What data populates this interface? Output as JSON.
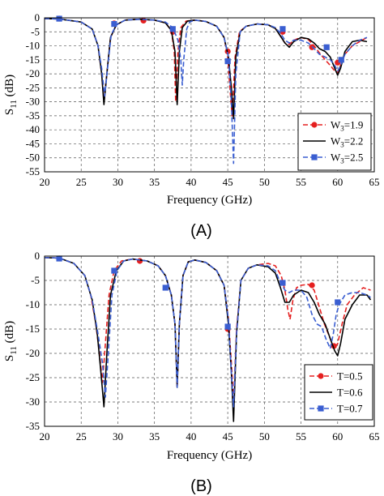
{
  "chart_data": [
    {
      "type": "line",
      "panel_label": "(A)",
      "xlabel": "Frequency (GHz)",
      "ylabel": "S11 (dB)",
      "xlim": [
        20,
        65
      ],
      "ylim": [
        -55,
        0
      ],
      "xticks": [
        20,
        25,
        30,
        35,
        40,
        45,
        50,
        55,
        60,
        65
      ],
      "yticks": [
        0,
        -5,
        -10,
        -15,
        -20,
        -25,
        -30,
        -35,
        -40,
        -45,
        -50,
        -55
      ],
      "grid": true,
      "grid_style": "dashed",
      "legend_position": "right",
      "series": [
        {
          "name": "W3=1.9",
          "legend_main": "W",
          "legend_sub": "3",
          "legend_suffix": "=1.9",
          "color": "#e52020",
          "dash": "dashed",
          "marker": "circle",
          "markers": [
            [
              22,
              -0.3
            ],
            [
              29.5,
              -2
            ],
            [
              33.5,
              -1
            ],
            [
              37.5,
              -5
            ],
            [
              45,
              -12
            ],
            [
              52.5,
              -5
            ],
            [
              56.5,
              -10.5
            ],
            [
              60,
              -16
            ]
          ],
          "x": [
            20,
            22,
            25,
            26.5,
            27.3,
            27.8,
            28.1,
            28.5,
            29,
            29.8,
            31,
            33,
            35,
            36.5,
            37.3,
            37.7,
            37.9,
            38.2,
            38.6,
            39.3,
            40.5,
            42,
            43.5,
            44.5,
            45,
            45.3,
            45.6,
            46,
            46.6,
            47.5,
            49,
            50.5,
            51.5,
            52.2,
            52.8,
            53.4,
            54,
            55,
            56,
            56.8,
            57.5,
            58.3,
            59,
            59.6,
            60,
            60.4,
            61,
            62,
            63,
            64
          ],
          "y": [
            -0.3,
            -0.4,
            -1.5,
            -4,
            -10,
            -20,
            -30,
            -20,
            -7,
            -2.5,
            -0.8,
            -0.5,
            -0.8,
            -1.8,
            -4.5,
            -12,
            -30,
            -12,
            -3.5,
            -1.2,
            -0.8,
            -1.3,
            -3,
            -7,
            -14,
            -25,
            -35,
            -14,
            -5,
            -3,
            -2.2,
            -2.5,
            -3.8,
            -6.5,
            -9,
            -9.5,
            -8,
            -7,
            -7.8,
            -10,
            -12.5,
            -15,
            -17,
            -19,
            -19.5,
            -17,
            -13,
            -10,
            -8.5,
            -7
          ]
        },
        {
          "name": "W3=2.2",
          "legend_main": "W",
          "legend_sub": "3",
          "legend_suffix": "=2.2",
          "color": "#000000",
          "dash": "solid",
          "marker": "none",
          "markers": [],
          "x": [
            20,
            22,
            25,
            26.5,
            27.3,
            27.8,
            28.1,
            28.5,
            29,
            29.8,
            31,
            33,
            35,
            36.5,
            37.3,
            37.8,
            38.1,
            38.4,
            38.8,
            39.5,
            40.5,
            42,
            43.5,
            44.5,
            45.1,
            45.5,
            45.8,
            46.1,
            46.7,
            47.5,
            49,
            50.5,
            51.5,
            52.2,
            52.8,
            53.4,
            54,
            55,
            56,
            56.8,
            57.5,
            58.3,
            59,
            59.6,
            60,
            60.4,
            61,
            62,
            63,
            64
          ],
          "y": [
            -0.3,
            -0.4,
            -1.5,
            -4,
            -10,
            -20,
            -31,
            -20,
            -7,
            -2.5,
            -0.8,
            -0.5,
            -0.8,
            -1.8,
            -4.5,
            -12,
            -31,
            -12,
            -3.5,
            -1.2,
            -0.8,
            -1.3,
            -3,
            -7,
            -14,
            -25,
            -36,
            -14,
            -5,
            -3,
            -2.2,
            -2.5,
            -3.8,
            -6.5,
            -9,
            -10.5,
            -8.5,
            -7,
            -7.5,
            -9,
            -11,
            -12,
            -14,
            -18,
            -20.5,
            -18,
            -12,
            -8.5,
            -8,
            -8.5
          ]
        },
        {
          "name": "W3=2.5",
          "legend_main": "W",
          "legend_sub": "3",
          "legend_suffix": "=2.5",
          "color": "#3a5ed1",
          "dash": "dashed",
          "marker": "square",
          "markers": [
            [
              22,
              -0.3
            ],
            [
              29.5,
              -2.2
            ],
            [
              37.5,
              -4
            ],
            [
              45,
              -15.5
            ],
            [
              52.5,
              -4
            ],
            [
              58.5,
              -10.5
            ],
            [
              60.5,
              -15
            ]
          ],
          "x": [
            20,
            22,
            25,
            26.5,
            27.3,
            27.8,
            28.2,
            28.6,
            29.1,
            29.8,
            31,
            33,
            35,
            36.5,
            37.5,
            38.2,
            38.6,
            38.8,
            39,
            39.4,
            39.8,
            40.5,
            42,
            43.5,
            44.5,
            45.1,
            45.5,
            45.8,
            46.1,
            46.7,
            47.5,
            49,
            50.5,
            51.5,
            52.2,
            52.8,
            53.4,
            54,
            55,
            56,
            56.8,
            57.5,
            58.3,
            59,
            59.6,
            60,
            60.4,
            61,
            62,
            63,
            64
          ],
          "y": [
            -0.3,
            -0.4,
            -1.5,
            -4,
            -10,
            -18,
            -28,
            -18,
            -6,
            -2.5,
            -0.8,
            -0.5,
            -0.8,
            -1.5,
            -3.5,
            -8,
            -15,
            -24,
            -15,
            -4,
            -1.5,
            -0.8,
            -1.3,
            -3,
            -7,
            -14,
            -30,
            -52,
            -20,
            -5,
            -3,
            -2.2,
            -2.5,
            -3.5,
            -5.5,
            -8,
            -9,
            -8,
            -8,
            -9,
            -11,
            -13,
            -14,
            -15,
            -17,
            -19,
            -17,
            -13,
            -10,
            -8,
            -7
          ]
        }
      ]
    },
    {
      "type": "line",
      "panel_label": "(B)",
      "xlabel": "Frequency (GHz)",
      "ylabel": "S11 (dB)",
      "xlim": [
        20,
        65
      ],
      "ylim": [
        -35,
        0
      ],
      "xticks": [
        20,
        25,
        30,
        35,
        40,
        45,
        50,
        55,
        60,
        65
      ],
      "yticks": [
        0,
        -5,
        -10,
        -15,
        -20,
        -25,
        -30,
        -35
      ],
      "grid": true,
      "grid_style": "dashed",
      "legend_position": "bottom-right",
      "series": [
        {
          "name": "T=0.5",
          "legend_main": "T=0.5",
          "legend_sub": "",
          "legend_suffix": "",
          "color": "#e52020",
          "dash": "dashed",
          "marker": "circle",
          "markers": [
            [
              22,
              -0.5
            ],
            [
              33,
              -1
            ],
            [
              45,
              -15
            ],
            [
              56.5,
              -6
            ],
            [
              59.5,
              -18.5
            ]
          ],
          "x": [
            20,
            22,
            24,
            25.5,
            26.3,
            27,
            27.5,
            27.9,
            28.3,
            28.8,
            29.5,
            30.5,
            32,
            34,
            35.5,
            36.5,
            37.3,
            37.8,
            38.1,
            38.4,
            38.9,
            39.6,
            40.5,
            42,
            43.5,
            44.5,
            45.1,
            45.5,
            45.8,
            46.2,
            46.8,
            47.8,
            49,
            50.5,
            51.5,
            52.3,
            52.8,
            53.2,
            53.5,
            53.9,
            54.4,
            55,
            56,
            56.8,
            57.4,
            58.2,
            59,
            59.5,
            60,
            60.6,
            61.3,
            62.3,
            63.5,
            64.5
          ],
          "y": [
            -0.3,
            -0.4,
            -1.5,
            -4,
            -8,
            -14,
            -20,
            -26,
            -18,
            -8,
            -3,
            -1,
            -0.6,
            -1,
            -2,
            -4,
            -8,
            -14,
            -27,
            -14,
            -4,
            -1.2,
            -0.8,
            -1.3,
            -3,
            -6,
            -13,
            -22,
            -30,
            -15,
            -5,
            -2.5,
            -1.8,
            -1.5,
            -2,
            -4,
            -7,
            -11,
            -13,
            -9,
            -6.5,
            -6,
            -5.8,
            -7,
            -10,
            -14,
            -17,
            -19,
            -18,
            -14,
            -10,
            -8,
            -6.5,
            -7
          ]
        },
        {
          "name": "T=0.6",
          "legend_main": "T=0.6",
          "legend_sub": "",
          "legend_suffix": "",
          "color": "#000000",
          "dash": "solid",
          "marker": "none",
          "markers": [],
          "x": [
            20,
            22,
            24,
            25.5,
            26.5,
            27.2,
            27.7,
            28.1,
            28.5,
            29,
            29.8,
            30.8,
            32,
            34,
            35.5,
            36.5,
            37.3,
            37.8,
            38.1,
            38.4,
            38.9,
            39.6,
            40.5,
            42,
            43.5,
            44.5,
            45.1,
            45.5,
            45.8,
            46.2,
            46.8,
            47.8,
            49,
            50.5,
            51.5,
            52.2,
            52.8,
            53.4,
            54,
            55,
            56,
            56.8,
            57.5,
            58.3,
            59,
            59.6,
            60,
            60.4,
            61,
            62,
            63,
            64,
            64.5
          ],
          "y": [
            -0.3,
            -0.4,
            -1.5,
            -4,
            -9,
            -16,
            -24,
            -31,
            -20,
            -8,
            -3,
            -1,
            -0.6,
            -1,
            -2,
            -4,
            -8,
            -14,
            -27,
            -14,
            -4,
            -1.2,
            -0.8,
            -1.3,
            -3,
            -6,
            -14,
            -24,
            -34,
            -16,
            -5,
            -2.5,
            -1.8,
            -2.2,
            -3.5,
            -6.5,
            -9.5,
            -9.5,
            -8,
            -7,
            -7.5,
            -9.5,
            -12,
            -14,
            -17,
            -19.5,
            -20.5,
            -18,
            -13,
            -10,
            -8,
            -8,
            -9
          ]
        },
        {
          "name": "T=0.7",
          "legend_main": "T=0.7",
          "legend_sub": "",
          "legend_suffix": "",
          "color": "#3a5ed1",
          "dash": "dashed",
          "marker": "square",
          "markers": [
            [
              22,
              -0.5
            ],
            [
              29.5,
              -3
            ],
            [
              36.5,
              -6.5
            ],
            [
              45,
              -14.5
            ],
            [
              52.5,
              -5.5
            ],
            [
              60,
              -9.5
            ]
          ],
          "x": [
            20,
            22,
            24,
            25.5,
            26.5,
            27.3,
            27.9,
            28.3,
            28.7,
            29.2,
            29.9,
            30.8,
            32,
            34,
            35.5,
            36.5,
            37.3,
            37.8,
            38.1,
            38.4,
            38.9,
            39.6,
            40.5,
            42,
            43.5,
            44.5,
            45.1,
            45.5,
            45.8,
            46.2,
            46.8,
            47.8,
            49,
            50.5,
            51.5,
            52.2,
            52.8,
            53.4,
            54,
            55,
            55.8,
            56.5,
            57.2,
            57.8,
            58.4,
            59,
            59.4,
            59.8,
            60.2,
            61,
            62,
            63,
            64,
            64.5
          ],
          "y": [
            -0.3,
            -0.4,
            -1.5,
            -4,
            -9,
            -16,
            -22,
            -29,
            -20,
            -8,
            -3,
            -1,
            -0.6,
            -1,
            -2,
            -4,
            -8,
            -14,
            -27,
            -14,
            -4,
            -1.2,
            -0.8,
            -1.3,
            -3,
            -6,
            -13,
            -24,
            -31,
            -16,
            -5,
            -2.5,
            -1.8,
            -2,
            -3,
            -5.5,
            -7,
            -7.5,
            -7,
            -7,
            -8.5,
            -12,
            -14,
            -14.5,
            -17,
            -19,
            -16,
            -12,
            -10,
            -8,
            -7.5,
            -7.5,
            -8,
            -8.5
          ]
        }
      ]
    }
  ]
}
